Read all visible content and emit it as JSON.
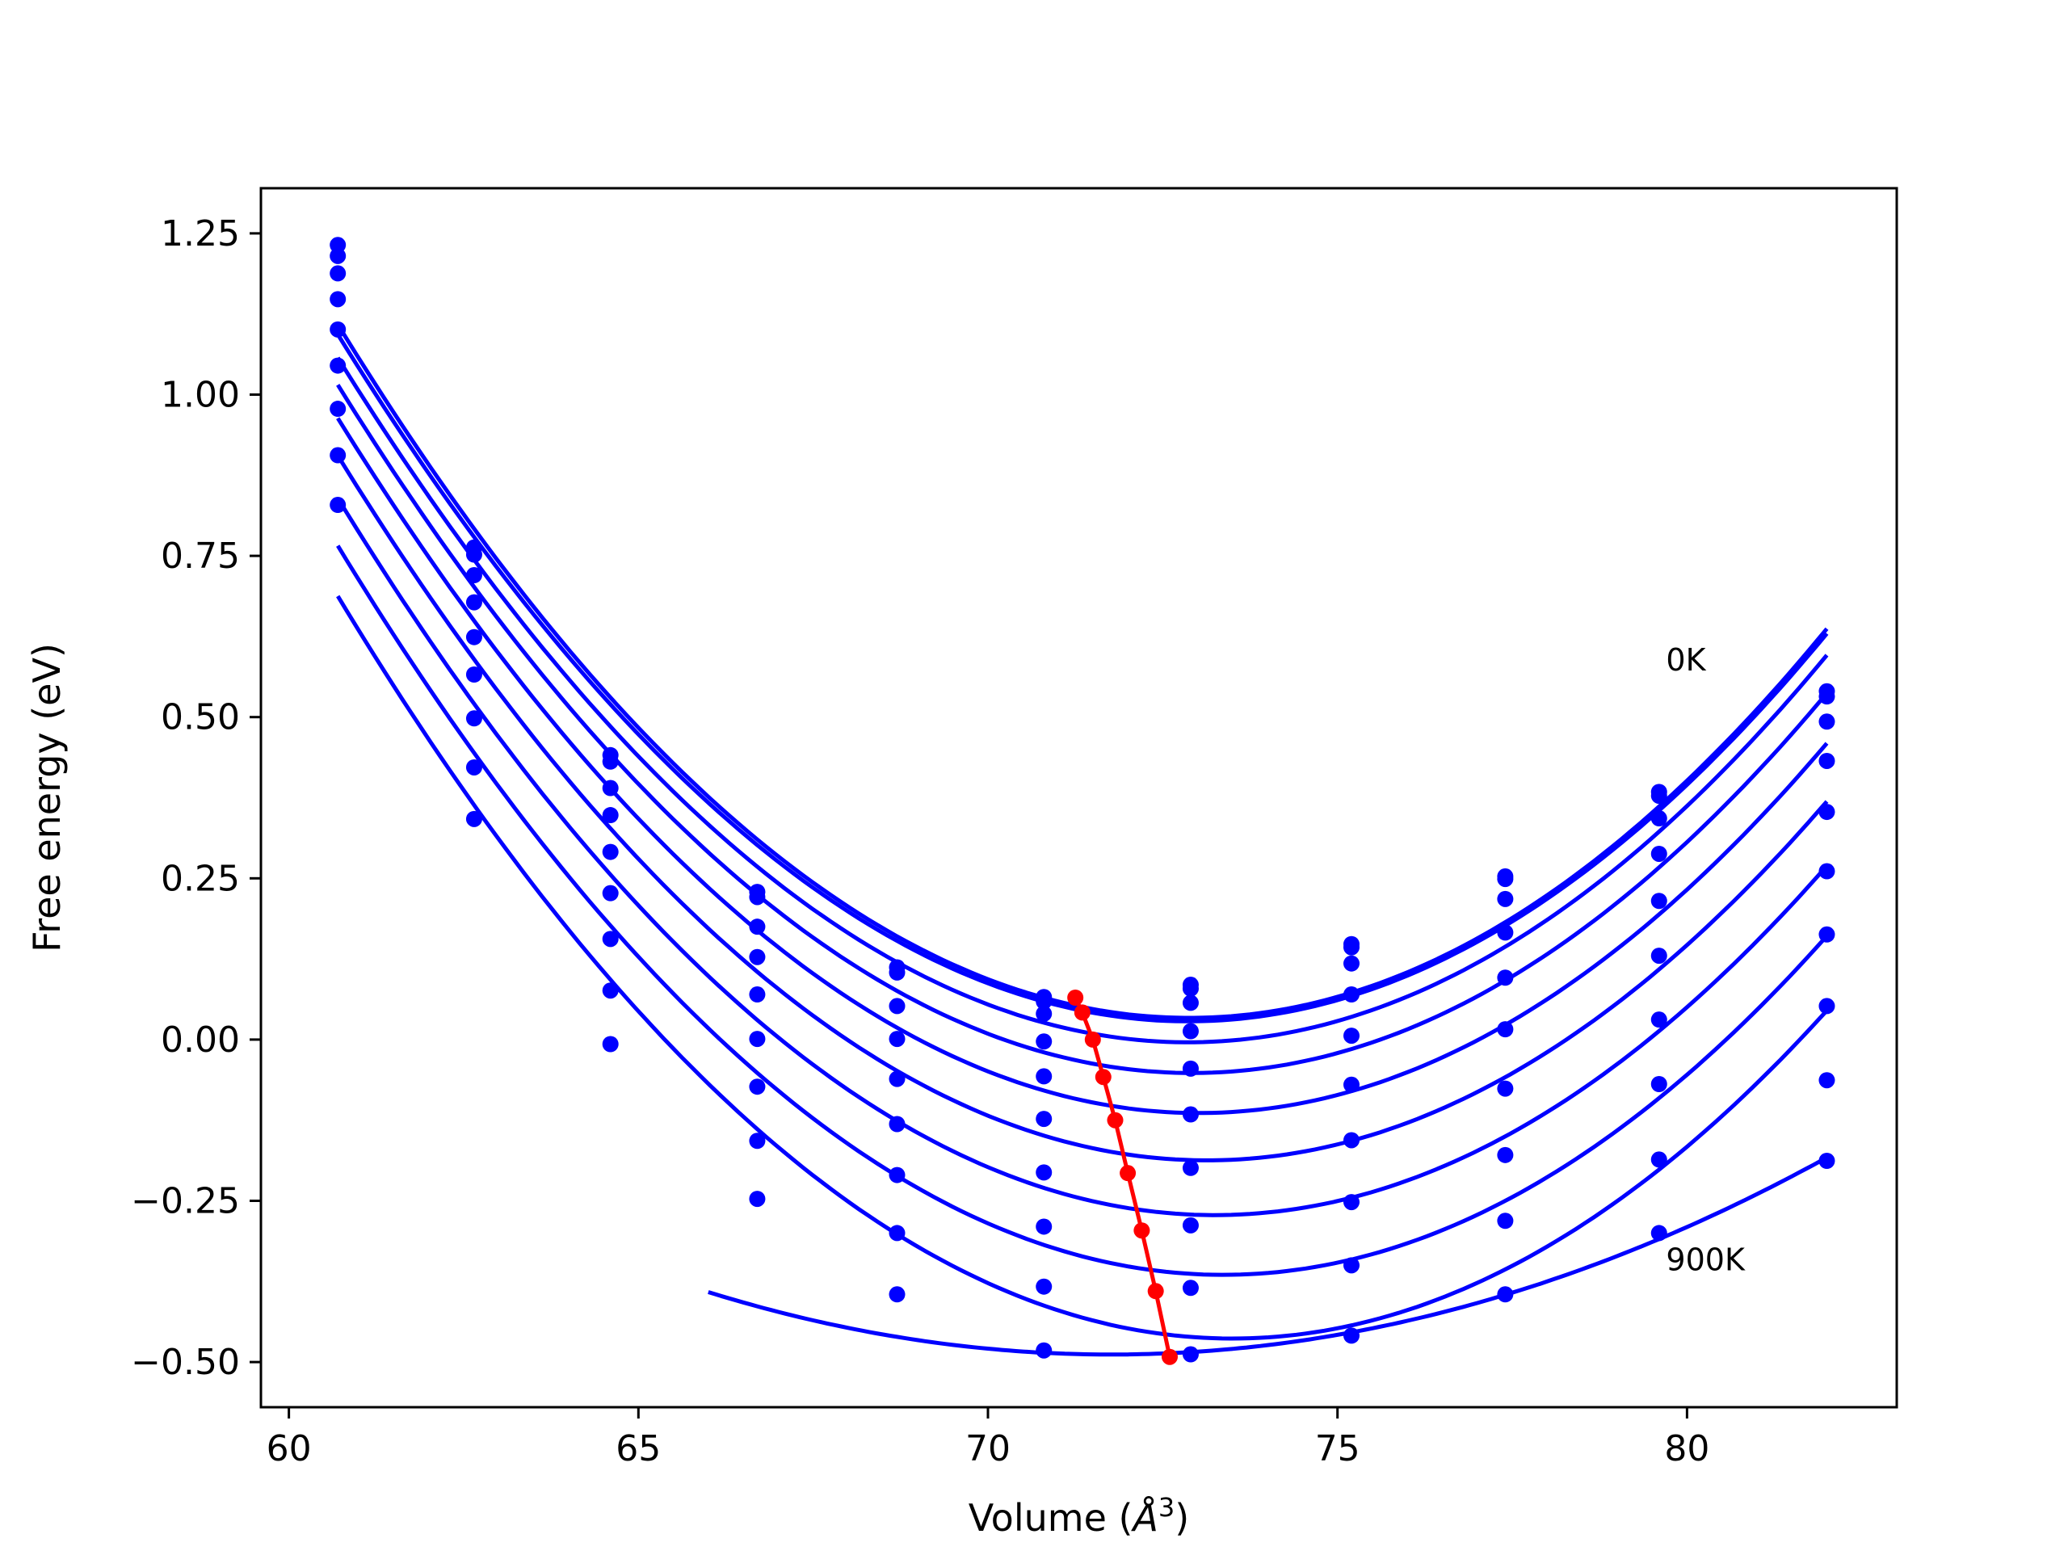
{
  "chart_data": {
    "type": "line",
    "xlabel_prefix": "Volume (",
    "xlabel_unit": "Å",
    "xlabel_sup": "3",
    "xlabel_suffix": ")",
    "ylabel": "Free energy (eV)",
    "xlim": [
      59.6,
      83.0
    ],
    "ylim": [
      -0.57,
      1.32
    ],
    "xticks": [
      60,
      65,
      70,
      75,
      80
    ],
    "xtick_labels": [
      "60",
      "65",
      "70",
      "75",
      "80"
    ],
    "yticks": [
      -0.5,
      -0.25,
      0.0,
      0.25,
      0.5,
      0.75,
      1.0,
      1.25
    ],
    "ytick_labels": [
      "−0.50",
      "−0.25",
      "0.00",
      "0.25",
      "0.50",
      "0.75",
      "1.00",
      "1.25"
    ],
    "grid": false,
    "annotations": [
      {
        "text": "0K",
        "x": 79.7,
        "y": 0.59
      },
      {
        "text": "900K",
        "x": 79.7,
        "y": -0.34
      }
    ],
    "x": [
      60.7,
      62.65,
      64.6,
      66.7,
      68.7,
      70.8,
      72.9,
      75.2,
      77.4,
      79.6,
      82.0
    ],
    "series": [
      {
        "values": [
          1.232,
          0.763,
          0.441,
          0.229,
          0.112,
          0.066,
          0.085,
          0.148,
          0.253,
          0.384,
          0.54
        ],
        "color": "#0000ff"
      },
      {
        "values": [
          1.215,
          0.752,
          0.431,
          0.221,
          0.104,
          0.059,
          0.079,
          0.143,
          0.249,
          0.378,
          0.532
        ],
        "color": "#0000ff"
      },
      {
        "values": [
          1.188,
          0.72,
          0.39,
          0.175,
          0.052,
          0.04,
          0.057,
          0.118,
          0.218,
          0.343,
          0.493
        ],
        "color": "#0000ff"
      },
      {
        "values": [
          1.148,
          0.678,
          0.348,
          0.128,
          0.001,
          -0.003,
          0.013,
          0.07,
          0.166,
          0.288,
          0.432
        ],
        "color": "#0000ff"
      },
      {
        "values": [
          1.101,
          0.624,
          0.291,
          0.07,
          -0.061,
          -0.057,
          -0.045,
          0.006,
          0.096,
          0.215,
          0.353
        ],
        "color": "#0000ff"
      },
      {
        "values": [
          1.045,
          0.566,
          0.227,
          0.001,
          -0.131,
          -0.123,
          -0.116,
          -0.07,
          0.016,
          0.13,
          0.261
        ],
        "color": "#0000ff"
      },
      {
        "values": [
          0.978,
          0.498,
          0.156,
          -0.073,
          -0.21,
          -0.206,
          -0.199,
          -0.156,
          -0.076,
          0.031,
          0.163
        ],
        "color": "#0000ff"
      },
      {
        "values": [
          0.906,
          0.422,
          0.076,
          -0.157,
          -0.3,
          -0.29,
          -0.288,
          -0.252,
          -0.179,
          -0.069,
          0.052
        ],
        "color": "#0000ff"
      },
      {
        "values": [
          0.829,
          0.342,
          -0.007,
          -0.247,
          -0.395,
          -0.383,
          -0.385,
          -0.35,
          -0.281,
          -0.186,
          -0.063
        ],
        "color": "#0000ff"
      },
      {
        "values": [
          null,
          null,
          null,
          null,
          null,
          -0.482,
          -0.488,
          -0.459,
          -0.395,
          -0.3,
          -0.188
        ],
        "color": "#0000ff"
      }
    ],
    "minimum_path": {
      "color": "#ff0000",
      "x": [
        71.25,
        71.35,
        71.5,
        71.65,
        71.82,
        72.0,
        72.2,
        72.4,
        72.6
      ],
      "y": [
        0.065,
        0.042,
        0.0,
        -0.058,
        -0.125,
        -0.207,
        -0.296,
        -0.39,
        -0.492
      ]
    }
  }
}
